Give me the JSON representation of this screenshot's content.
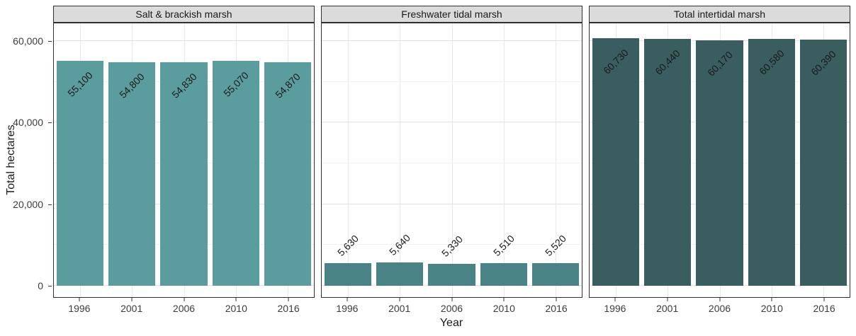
{
  "figure": {
    "x_axis_title": "Year",
    "y_axis_title": "Total hectares"
  },
  "chart_data": {
    "type": "bar",
    "title": "",
    "xlabel": "Year",
    "ylabel": "Total hectares",
    "grid": true,
    "legend": "none",
    "categories": [
      "1996",
      "2001",
      "2006",
      "2010",
      "2016"
    ],
    "y_ticks": [
      0,
      20000,
      40000,
      60000
    ],
    "y_tick_labels": [
      "0",
      "20,000",
      "40,000",
      "60,000"
    ],
    "ylim": [
      0,
      64700
    ],
    "strip_background": "#dbdbdb",
    "panels": [
      {
        "title": "Salt & brackish marsh",
        "bar_color": "#5b9d9e",
        "values": [
          55100,
          54800,
          54830,
          55070,
          54870
        ],
        "value_labels": [
          "55,100",
          "54,800",
          "54,830",
          "55,070",
          "54,870"
        ]
      },
      {
        "title": "Freshwater tidal marsh",
        "bar_color": "#4a8385",
        "values": [
          5630,
          5640,
          5330,
          5510,
          5520
        ],
        "value_labels": [
          "5,630",
          "5,640",
          "5,330",
          "5,510",
          "5,520"
        ]
      },
      {
        "title": "Total intertidal marsh",
        "bar_color": "#3a5e60",
        "values": [
          60730,
          60440,
          60170,
          60580,
          60390
        ],
        "value_labels": [
          "60,730",
          "60,440",
          "60,170",
          "60,580",
          "60,390"
        ]
      }
    ]
  }
}
